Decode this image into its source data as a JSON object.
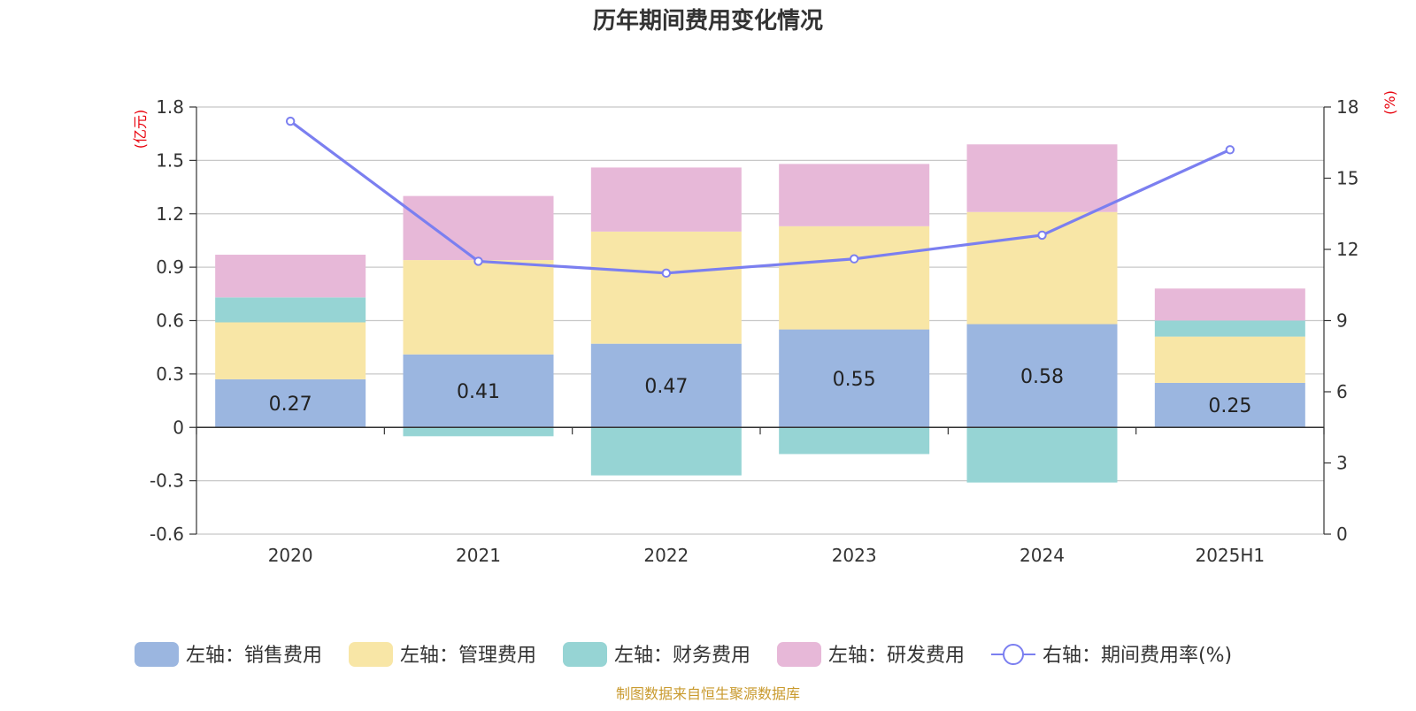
{
  "title": "历年期间费用变化情况",
  "source_note": "制图数据来自恒生聚源数据库",
  "left_unit": "(亿元)",
  "right_unit": "(%)",
  "colors": {
    "sales": "#9bb6e0",
    "admin": "#f8e6a6",
    "finance": "#96d4d4",
    "rnd": "#e7b8d8",
    "rate": "#7b7ff0",
    "grid": "#c8c8c8",
    "axis": "#333333"
  },
  "chart_data": {
    "type": "bar",
    "stacked": true,
    "categories": [
      "2020",
      "2021",
      "2022",
      "2023",
      "2024",
      "2025H1"
    ],
    "series": [
      {
        "name": "左轴：销售费用",
        "key": "sales",
        "axis": "left",
        "values": [
          0.27,
          0.41,
          0.47,
          0.55,
          0.58,
          0.25
        ]
      },
      {
        "name": "左轴：管理费用",
        "key": "admin",
        "axis": "left",
        "values": [
          0.32,
          0.53,
          0.63,
          0.58,
          0.63,
          0.26
        ]
      },
      {
        "name": "左轴：财务费用",
        "key": "finance",
        "axis": "left",
        "values": [
          0.14,
          -0.05,
          -0.27,
          -0.15,
          -0.31,
          0.09
        ]
      },
      {
        "name": "左轴：研发费用",
        "key": "rnd",
        "axis": "left",
        "values": [
          0.24,
          0.36,
          0.36,
          0.35,
          0.38,
          0.18
        ]
      },
      {
        "name": "右轴：期间费用率(%)",
        "key": "rate",
        "axis": "right",
        "type": "line",
        "values": [
          17.4,
          11.5,
          11.0,
          11.6,
          12.6,
          16.2
        ]
      }
    ],
    "data_labels": [
      "0.27",
      "0.41",
      "0.47",
      "0.55",
      "0.58",
      "0.25"
    ],
    "y_left": {
      "min": -0.6,
      "max": 1.8,
      "ticks": [
        "-0.6",
        "-0.3",
        "0",
        "0.3",
        "0.6",
        "0.9",
        "1.2",
        "1.5",
        "1.8"
      ]
    },
    "y_right": {
      "min": 0,
      "max": 18,
      "ticks": [
        "0",
        "3",
        "6",
        "9",
        "12",
        "15",
        "18"
      ]
    },
    "grid": true,
    "legend_position": "bottom"
  }
}
